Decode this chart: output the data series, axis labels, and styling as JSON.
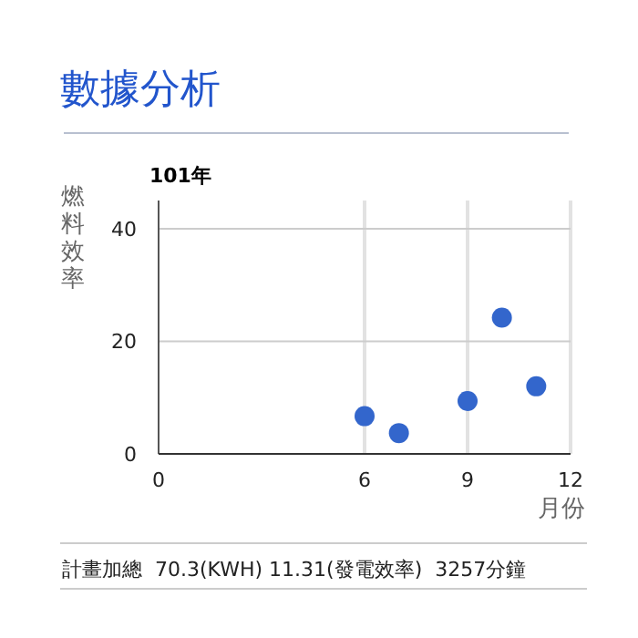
{
  "chart_data": {
    "type": "scatter",
    "title": "數據分析",
    "subtitle": "101年",
    "xlabel": "月份",
    "ylabel": "燃料效率",
    "x": [
      6,
      7,
      9,
      10,
      11
    ],
    "series": [
      {
        "color": "#3366cc",
        "values": [
          6.7,
          3.7,
          9.4,
          24.2,
          12.0
        ]
      }
    ],
    "xlim": [
      0,
      12
    ],
    "xticks": [
      0,
      6,
      9,
      12
    ],
    "ylim": [
      0,
      45
    ],
    "yticks": [
      0,
      20,
      40
    ],
    "grid": true,
    "marker": "circle",
    "annotations": [
      "計畫加總  70.3(KWH) 11.31(發電效率)  3257分鐘"
    ]
  }
}
